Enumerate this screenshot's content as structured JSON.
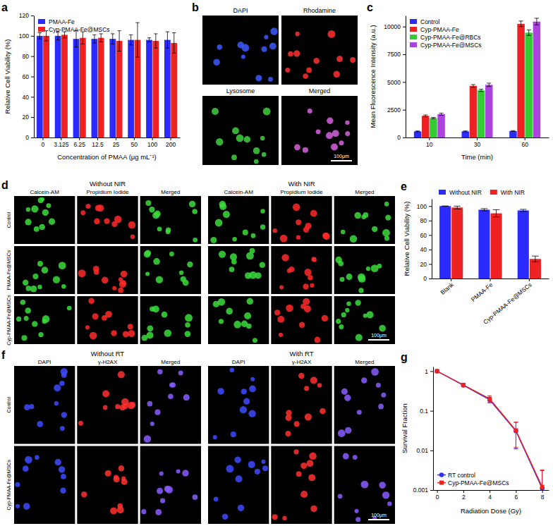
{
  "chart_data": [
    {
      "panel": "a",
      "type": "bar",
      "categories": [
        "0",
        "3.125",
        "6.25",
        "12.5",
        "25",
        "50",
        "100",
        "200"
      ],
      "x_label": "Concentration of PMAA (μg mL⁻¹)",
      "y_label": "Relative Cell Viability (%)",
      "ylim": [
        0,
        120
      ],
      "yticks": [
        0,
        20,
        40,
        60,
        80,
        100,
        120
      ],
      "legend": "upper left",
      "series": [
        {
          "name": "PMAA-Fe",
          "color": "#2b2bff",
          "values": [
            100,
            100,
            97,
            97,
            97,
            96,
            96,
            96
          ],
          "errors": [
            3,
            4,
            8,
            4,
            5,
            5,
            2,
            8
          ]
        },
        {
          "name": "Cyp-PMAA-Fe@MSCs",
          "color": "#ee2222",
          "values": [
            100,
            101,
            98,
            98,
            95,
            96,
            95,
            93
          ],
          "errors": [
            5,
            3,
            6,
            4,
            10,
            17,
            7,
            10
          ]
        }
      ]
    },
    {
      "panel": "c",
      "type": "bar",
      "categories": [
        "10",
        "30",
        "60"
      ],
      "x_label": "Time (min)",
      "y_label": "Mean Fluorescence Intensity (a.u.)",
      "ylim": [
        0,
        11000
      ],
      "yticks": [
        0,
        2500,
        5000,
        7500,
        10000
      ],
      "legend": "upper left",
      "series": [
        {
          "name": "Control",
          "color": "#2b2bff",
          "values": [
            550,
            550,
            580
          ],
          "errors": [
            40,
            40,
            40
          ]
        },
        {
          "name": "Cyp-PMAA-Fe",
          "color": "#ee2222",
          "values": [
            1950,
            4650,
            10250
          ],
          "errors": [
            80,
            120,
            250
          ]
        },
        {
          "name": "Cyp-PMAA-Fe@RBCs",
          "color": "#33cc33",
          "values": [
            1750,
            4250,
            9450
          ],
          "errors": [
            60,
            100,
            250
          ]
        },
        {
          "name": "Cyp-PMAA-Fe@MSCs",
          "color": "#aa44dd",
          "values": [
            2100,
            4750,
            10450
          ],
          "errors": [
            100,
            150,
            300
          ]
        }
      ]
    },
    {
      "panel": "e",
      "type": "bar",
      "categories": [
        "Blank",
        "PMAA-Fe",
        "Cyp-PMAA-Fe@MSCs"
      ],
      "y_label": "Relative Cell Viability (%)",
      "ylim": [
        0,
        110
      ],
      "yticks": [
        0,
        20,
        40,
        60,
        80,
        100
      ],
      "legend": "top",
      "series": [
        {
          "name": "Without NIR",
          "color": "#2b2bff",
          "values": [
            100,
            95,
            94
          ],
          "errors": [
            0,
            1.5,
            1.5
          ]
        },
        {
          "name": "With NIR",
          "color": "#ee2222",
          "values": [
            98,
            90,
            27
          ],
          "errors": [
            2,
            5,
            4
          ]
        }
      ]
    },
    {
      "panel": "g",
      "type": "line",
      "log": "y",
      "x": [
        0,
        2,
        4,
        6,
        8
      ],
      "x_label": "Radiation Dose (Gy)",
      "y_label": "Survival Fraction",
      "xlim": [
        -0.3,
        8.5
      ],
      "xticks": [
        0,
        2,
        4,
        6,
        8
      ],
      "ylim": [
        0.001,
        1.3
      ],
      "yticks": [
        0.001,
        0.01,
        0.1,
        1
      ],
      "legend": "lower left",
      "series": [
        {
          "name": "RT control",
          "color": "#2b2bff",
          "marker": "circle",
          "values": [
            1,
            0.44,
            0.19,
            0.031,
            0.0011
          ],
          "errors": [
            0,
            0.03,
            0.03,
            0.02,
            0.002
          ]
        },
        {
          "name": "Cyp-PMAA-Fe@MSCs",
          "color": "#ee2222",
          "marker": "square",
          "values": [
            1,
            0.45,
            0.2,
            0.032,
            0.0012
          ],
          "errors": [
            0,
            0.03,
            0.04,
            0.02,
            0.002
          ]
        }
      ]
    }
  ],
  "image_panels": [
    {
      "panel": "b",
      "images": [
        {
          "label": "DAPI",
          "color": "#3d5bff"
        },
        {
          "label": "Rhodamine",
          "color": "#ff3030"
        },
        {
          "label": "Lysosome",
          "color": "#40d040"
        },
        {
          "label": "Merged",
          "color": "#d860e0"
        }
      ],
      "scale_bar": "100μm"
    },
    {
      "panel": "d",
      "conditions": [
        "Without NIR",
        "With NIR"
      ],
      "channels": [
        {
          "label": "Calcein-AM",
          "color": "#3cdc3c"
        },
        {
          "label": "Propidium Iodide",
          "color": "#ff2a2a"
        },
        {
          "label": "Merged",
          "color": "#3cdc3c"
        }
      ],
      "rows": [
        "Control",
        "PMAA-Fe@MSCs",
        "Cyp-PMAA-Fe@MSCs"
      ],
      "scale_bar": "100μm"
    },
    {
      "panel": "f",
      "conditions": [
        "Without RT",
        "With RT"
      ],
      "channels": [
        {
          "label": "DAPI",
          "color": "#3d4bff"
        },
        {
          "label": "γ-H2AX",
          "color": "#ff3030"
        },
        {
          "label": "Merged",
          "color": "#8a5cff"
        }
      ],
      "rows": [
        "Control",
        "Cyp-PMAA-Fe@MSCs"
      ],
      "scale_bar": "100μm"
    }
  ]
}
